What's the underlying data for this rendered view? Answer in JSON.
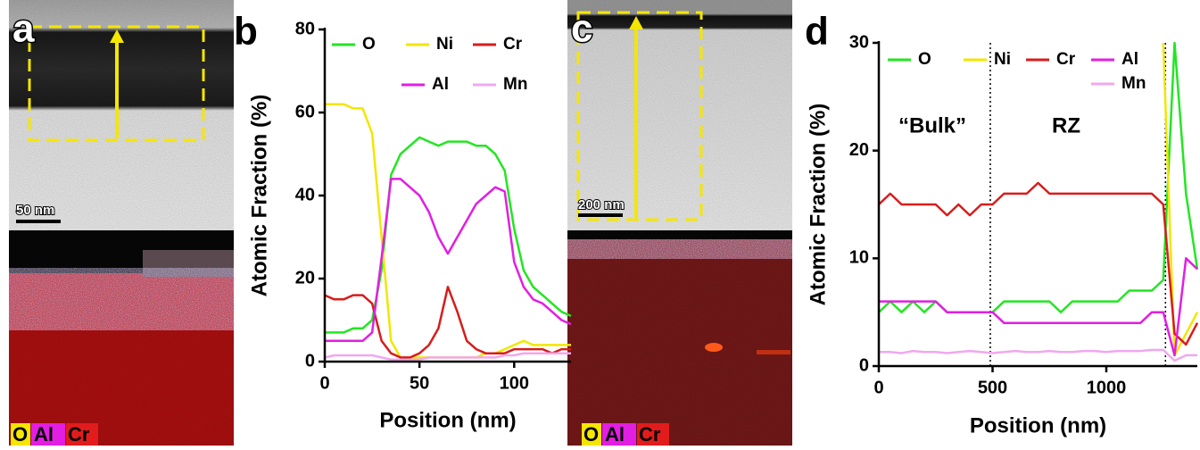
{
  "images": [
    {
      "label": "a",
      "scale_bar": "50 nm",
      "elements": [
        "O",
        "Al",
        "Cr"
      ]
    },
    {
      "label": "c",
      "scale_bar": "200 nm",
      "elements": [
        "O",
        "Al",
        "Cr"
      ]
    }
  ],
  "chart_data": [
    {
      "type": "line",
      "panel_label": "b",
      "x_label": "Position (nm)",
      "y_label": "Atomic Fraction (%)",
      "x": [
        0,
        5,
        10,
        15,
        20,
        25,
        30,
        35,
        40,
        45,
        50,
        55,
        60,
        65,
        70,
        75,
        80,
        85,
        90,
        95,
        100,
        105,
        110,
        115,
        120,
        125,
        130
      ],
      "xlim": [
        0,
        130
      ],
      "xticks": [
        0,
        50,
        100
      ],
      "ylim": [
        0,
        80
      ],
      "yticks": [
        0,
        20,
        40,
        60,
        80
      ],
      "series": [
        {
          "name": "O",
          "color": "#22e622",
          "values": [
            7,
            7,
            7,
            8,
            8,
            10,
            22,
            45,
            50,
            52,
            54,
            53,
            52,
            53,
            53,
            53,
            52,
            52,
            50,
            46,
            32,
            22,
            18,
            16,
            14,
            12,
            11
          ]
        },
        {
          "name": "Ni",
          "color": "#f2e600",
          "values": [
            62,
            62,
            62,
            61,
            61,
            55,
            30,
            5,
            1,
            1,
            1,
            1,
            1,
            1,
            1,
            1,
            1,
            2,
            2,
            3,
            4,
            5,
            4,
            4,
            4,
            4,
            4
          ]
        },
        {
          "name": "Cr",
          "color": "#d81c1c",
          "values": [
            16,
            15,
            15,
            16,
            16,
            14,
            5,
            2,
            1,
            1,
            2,
            4,
            8,
            18,
            12,
            5,
            3,
            2,
            2,
            2,
            3,
            3,
            3,
            3,
            2,
            3,
            3
          ]
        },
        {
          "name": "Al",
          "color": "#e21ee2",
          "values": [
            5,
            5,
            5,
            5,
            5,
            7,
            25,
            44,
            44,
            42,
            40,
            36,
            30,
            26,
            30,
            34,
            38,
            40,
            42,
            41,
            24,
            18,
            15,
            14,
            12,
            10,
            9
          ]
        },
        {
          "name": "Mn",
          "color": "#f0a8ee",
          "values": [
            1,
            1.5,
            1.5,
            1.5,
            1.5,
            1.5,
            1,
            0.5,
            0.5,
            0.5,
            0.5,
            1,
            1,
            1,
            1,
            1,
            1,
            1,
            1,
            1.5,
            1.5,
            2,
            2,
            2,
            2,
            2,
            2
          ]
        }
      ]
    },
    {
      "type": "line",
      "panel_label": "d",
      "x_label": "Position (nm)",
      "y_label": "Atomic Fraction (%)",
      "annotations": [
        "“Bulk”",
        "RZ"
      ],
      "vlines": [
        490,
        1260
      ],
      "x": [
        0,
        50,
        100,
        150,
        200,
        250,
        300,
        350,
        400,
        450,
        500,
        550,
        600,
        650,
        700,
        750,
        800,
        850,
        900,
        950,
        1000,
        1050,
        1100,
        1150,
        1200,
        1250,
        1300,
        1350,
        1400
      ],
      "xlim": [
        0,
        1400
      ],
      "xticks": [
        0,
        500,
        1000
      ],
      "ylim": [
        0,
        30
      ],
      "yticks": [
        0,
        10,
        20,
        30
      ],
      "series": [
        {
          "name": "O",
          "color": "#22e622",
          "values": [
            5,
            6,
            5,
            6,
            5,
            6,
            5,
            5,
            5,
            5,
            5,
            6,
            6,
            6,
            6,
            6,
            5,
            6,
            6,
            6,
            6,
            6,
            7,
            7,
            7,
            8,
            30,
            16,
            9
          ]
        },
        {
          "name": "Ni",
          "color": "#f2e600",
          "values": [
            null,
            null,
            null,
            null,
            null,
            null,
            null,
            null,
            null,
            null,
            null,
            null,
            null,
            null,
            null,
            null,
            null,
            null,
            null,
            null,
            null,
            null,
            null,
            null,
            null,
            30,
            1,
            3,
            5
          ]
        },
        {
          "name": "Cr",
          "color": "#d81c1c",
          "values": [
            15,
            16,
            15,
            15,
            15,
            15,
            14,
            15,
            14,
            15,
            15,
            16,
            16,
            16,
            17,
            16,
            16,
            16,
            16,
            16,
            16,
            16,
            16,
            16,
            16,
            15,
            3,
            2,
            4
          ]
        },
        {
          "name": "Al",
          "color": "#e21ee2",
          "values": [
            6,
            6,
            6,
            6,
            6,
            6,
            5,
            5,
            5,
            5,
            5,
            4,
            4,
            4,
            4,
            4,
            4,
            4,
            4,
            4,
            4,
            4,
            4,
            4,
            5,
            5,
            1,
            10,
            9
          ]
        },
        {
          "name": "Mn",
          "color": "#f0a8ee",
          "values": [
            1.3,
            1.3,
            1.2,
            1.4,
            1.3,
            1.3,
            1.2,
            1.3,
            1.4,
            1.3,
            1.2,
            1.3,
            1.4,
            1.3,
            1.3,
            1.4,
            1.3,
            1.3,
            1.4,
            1.4,
            1.3,
            1.4,
            1.4,
            1.4,
            1.5,
            1.5,
            0.5,
            1,
            1
          ]
        }
      ]
    }
  ]
}
